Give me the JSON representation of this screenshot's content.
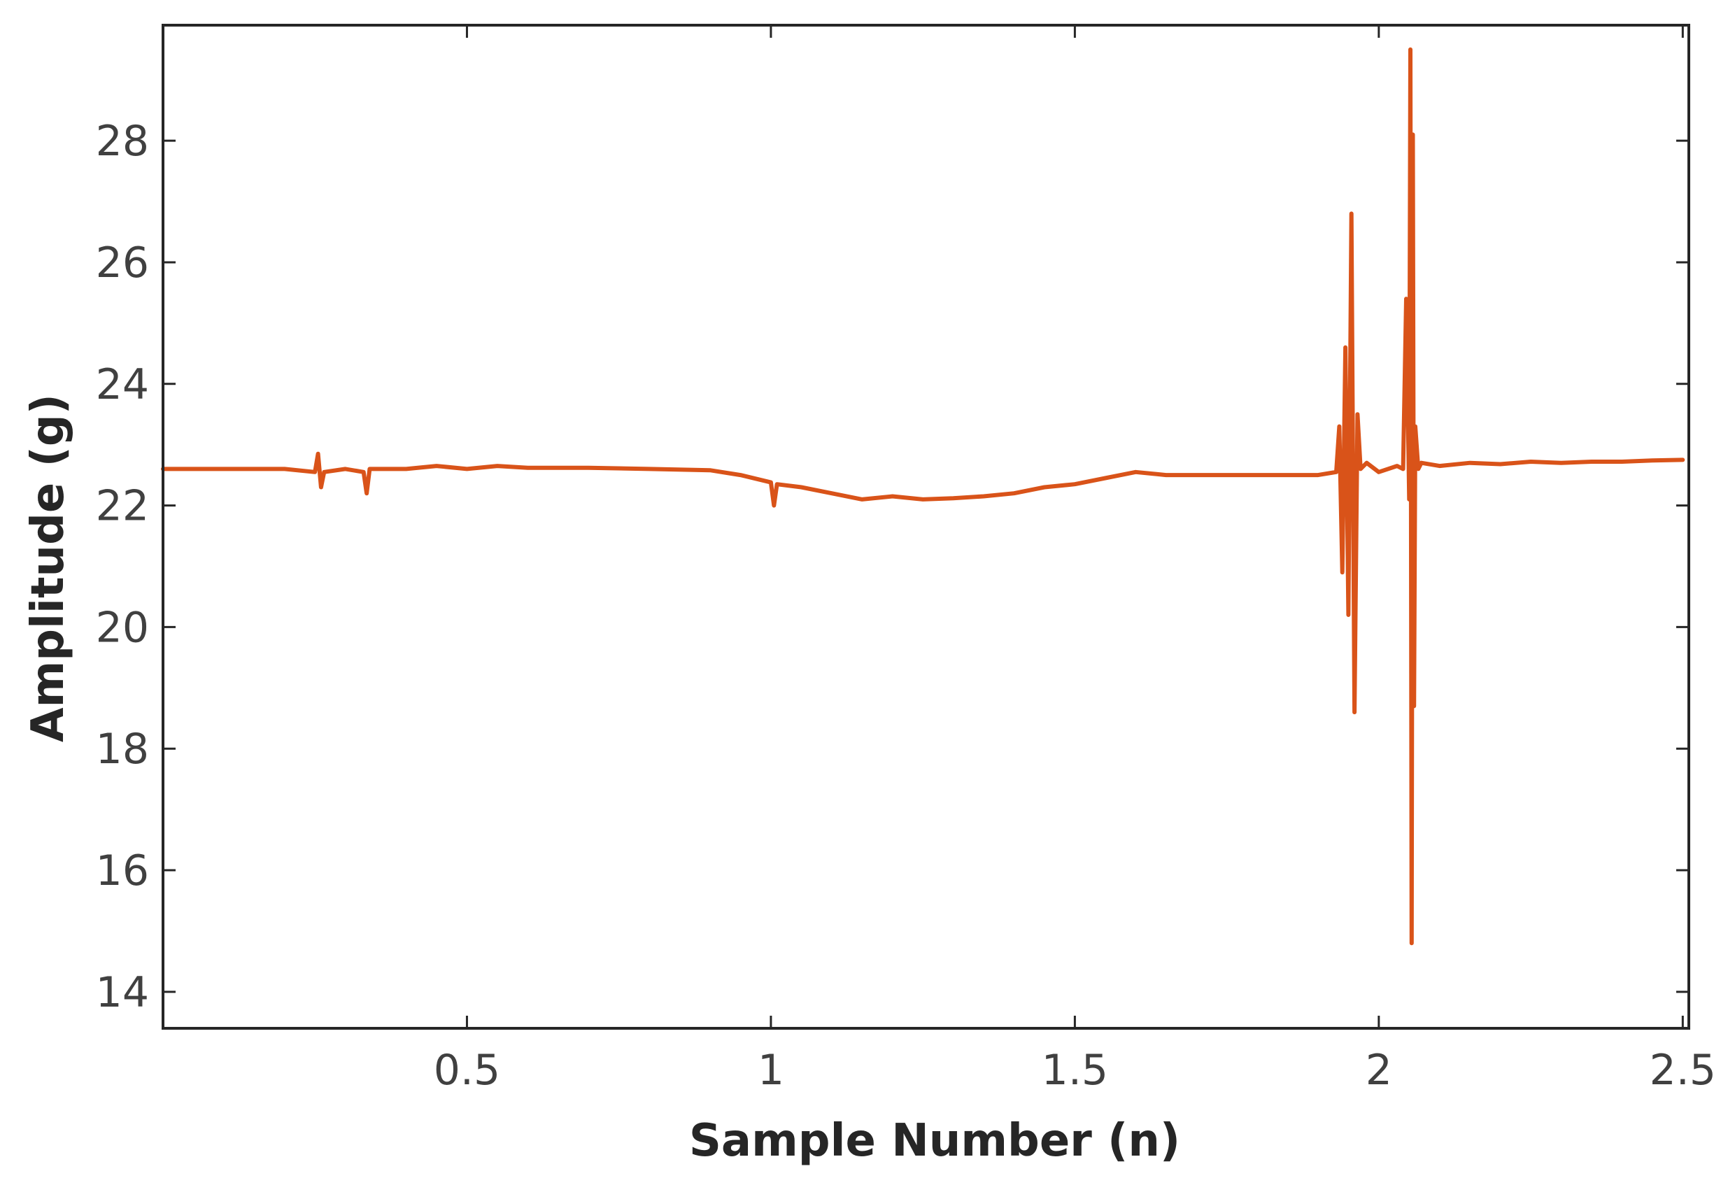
{
  "chart_data": {
    "type": "line",
    "title": "",
    "xlabel": "Sample Number (n)",
    "ylabel": "Amplitude (g)",
    "xlim": [
      0,
      2.51
    ],
    "ylim": [
      13.4,
      29.9
    ],
    "x_ticks": [
      0.5,
      1,
      1.5,
      2,
      2.5
    ],
    "x_tick_labels": [
      "0.5",
      "1",
      "1.5",
      "2",
      "2.5"
    ],
    "y_ticks": [
      14,
      16,
      18,
      20,
      22,
      24,
      26,
      28
    ],
    "y_tick_labels": [
      "14",
      "16",
      "18",
      "20",
      "22",
      "24",
      "26",
      "28"
    ],
    "grid": false,
    "legend": "none",
    "series": [
      {
        "color": "#D95319",
        "x": [
          0,
          0.1,
          0.2,
          0.25,
          0.255,
          0.26,
          0.265,
          0.3,
          0.33,
          0.335,
          0.34,
          0.4,
          0.45,
          0.5,
          0.55,
          0.6,
          0.7,
          0.8,
          0.9,
          0.95,
          1.0,
          1.005,
          1.01,
          1.05,
          1.1,
          1.15,
          1.2,
          1.25,
          1.3,
          1.35,
          1.4,
          1.45,
          1.5,
          1.55,
          1.6,
          1.65,
          1.7,
          1.8,
          1.9,
          1.93,
          1.935,
          1.94,
          1.945,
          1.95,
          1.955,
          1.96,
          1.965,
          1.97,
          1.98,
          2.0,
          2.03,
          2.04,
          2.045,
          2.05,
          2.052,
          2.054,
          2.056,
          2.058,
          2.06,
          2.065,
          2.07,
          2.1,
          2.15,
          2.2,
          2.25,
          2.3,
          2.35,
          2.4,
          2.45,
          2.5
        ],
        "y": [
          22.6,
          22.6,
          22.6,
          22.55,
          22.85,
          22.3,
          22.55,
          22.6,
          22.55,
          22.2,
          22.6,
          22.6,
          22.65,
          22.6,
          22.65,
          22.62,
          22.62,
          22.6,
          22.58,
          22.5,
          22.38,
          22.0,
          22.35,
          22.3,
          22.2,
          22.1,
          22.15,
          22.1,
          22.12,
          22.15,
          22.2,
          22.3,
          22.35,
          22.45,
          22.55,
          22.5,
          22.5,
          22.5,
          22.5,
          22.55,
          23.3,
          20.9,
          24.6,
          20.2,
          26.8,
          18.6,
          23.5,
          22.6,
          22.7,
          22.55,
          22.65,
          22.6,
          25.4,
          22.1,
          29.5,
          14.8,
          28.1,
          18.7,
          23.3,
          22.6,
          22.7,
          22.65,
          22.7,
          22.68,
          22.72,
          22.7,
          22.72,
          22.72,
          22.74,
          22.75
        ]
      }
    ]
  }
}
